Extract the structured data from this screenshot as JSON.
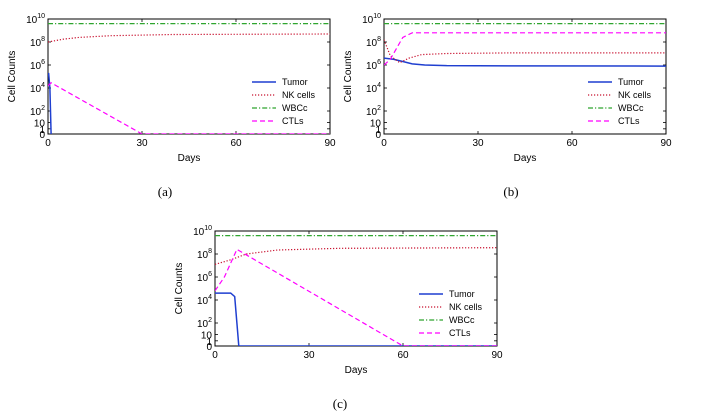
{
  "chart_data": [
    {
      "type": "line",
      "caption": "(a)",
      "xlabel": "Days",
      "ylabel": "Cell Counts",
      "xlim": [
        0,
        90
      ],
      "ylim_log10": [
        0,
        10
      ],
      "xticks": [
        "0",
        "30",
        "60",
        "90"
      ],
      "yticks": [
        {
          "base": "0",
          "exp": ""
        },
        {
          "base": "1",
          "exp": ""
        },
        {
          "base": "10",
          "exp": ""
        },
        {
          "base": "10",
          "exp": "2"
        },
        {
          "base": "10",
          "exp": "4"
        },
        {
          "base": "10",
          "exp": "6"
        },
        {
          "base": "10",
          "exp": "8"
        },
        {
          "base": "10",
          "exp": "10"
        }
      ],
      "legend": [
        "Tumor",
        "NK cells",
        "WBCc",
        "CTLs"
      ],
      "series": [
        {
          "name": "Tumor",
          "color": "#1f3fd0",
          "dash": "solid",
          "points": [
            [
              0,
              5.0
            ],
            [
              0.2,
              5.3
            ],
            [
              0.6,
              4.0
            ],
            [
              1.0,
              0
            ]
          ]
        },
        {
          "name": "NK cells",
          "color": "#c8102e",
          "dash": "dotted",
          "points": [
            [
              0,
              8.0
            ],
            [
              5,
              8.25
            ],
            [
              10,
              8.4
            ],
            [
              20,
              8.55
            ],
            [
              40,
              8.65
            ],
            [
              90,
              8.7
            ]
          ]
        },
        {
          "name": "WBCc",
          "color": "#2fa52f",
          "dash": "dashdot",
          "points": [
            [
              0,
              9.6
            ],
            [
              90,
              9.6
            ]
          ]
        },
        {
          "name": "CTLs",
          "color": "#ff00ff",
          "dash": "dashed",
          "points": [
            [
              0,
              4.2
            ],
            [
              1,
              4.45
            ],
            [
              30,
              0
            ],
            [
              90,
              0
            ]
          ]
        }
      ]
    },
    {
      "type": "line",
      "caption": "(b)",
      "xlabel": "Days",
      "ylabel": "Cell Counts",
      "xlim": [
        0,
        90
      ],
      "ylim_log10": [
        0,
        10
      ],
      "xticks": [
        "0",
        "30",
        "60",
        "90"
      ],
      "yticks": [
        {
          "base": "0",
          "exp": ""
        },
        {
          "base": "1",
          "exp": ""
        },
        {
          "base": "10",
          "exp": ""
        },
        {
          "base": "10",
          "exp": "2"
        },
        {
          "base": "10",
          "exp": "4"
        },
        {
          "base": "10",
          "exp": "6"
        },
        {
          "base": "10",
          "exp": "8"
        },
        {
          "base": "10",
          "exp": "10"
        }
      ],
      "legend": [
        "Tumor",
        "NK cells",
        "WBCc",
        "CTLs"
      ],
      "series": [
        {
          "name": "Tumor",
          "color": "#1f3fd0",
          "dash": "solid",
          "points": [
            [
              0,
              6.6
            ],
            [
              3,
              6.5
            ],
            [
              6,
              6.3
            ],
            [
              9,
              6.1
            ],
            [
              13,
              6.0
            ],
            [
              20,
              5.95
            ],
            [
              40,
              5.92
            ],
            [
              90,
              5.9
            ]
          ]
        },
        {
          "name": "NK cells",
          "color": "#c8102e",
          "dash": "dotted",
          "points": [
            [
              0,
              8.2
            ],
            [
              2,
              6.8
            ],
            [
              5,
              6.2
            ],
            [
              8,
              6.6
            ],
            [
              12,
              6.9
            ],
            [
              20,
              7.0
            ],
            [
              40,
              7.05
            ],
            [
              90,
              7.05
            ]
          ]
        },
        {
          "name": "WBCc",
          "color": "#2fa52f",
          "dash": "dashdot",
          "points": [
            [
              0,
              9.6
            ],
            [
              90,
              9.6
            ]
          ]
        },
        {
          "name": "CTLs",
          "color": "#ff00ff",
          "dash": "dashed",
          "points": [
            [
              0,
              6.0
            ],
            [
              2,
              6.5
            ],
            [
              6,
              8.4
            ],
            [
              9,
              8.8
            ],
            [
              15,
              8.8
            ],
            [
              90,
              8.8
            ]
          ]
        }
      ]
    },
    {
      "type": "line",
      "caption": "(c)",
      "xlabel": "Days",
      "ylabel": "Cell Counts",
      "xlim": [
        0,
        90
      ],
      "ylim_log10": [
        0,
        10
      ],
      "xticks": [
        "0",
        "30",
        "60",
        "90"
      ],
      "yticks": [
        {
          "base": "0",
          "exp": ""
        },
        {
          "base": "1",
          "exp": ""
        },
        {
          "base": "10",
          "exp": ""
        },
        {
          "base": "10",
          "exp": "2"
        },
        {
          "base": "10",
          "exp": "4"
        },
        {
          "base": "10",
          "exp": "6"
        },
        {
          "base": "10",
          "exp": "8"
        },
        {
          "base": "10",
          "exp": "10"
        }
      ],
      "legend": [
        "Tumor",
        "NK cells",
        "WBCc",
        "CTLs"
      ],
      "series": [
        {
          "name": "Tumor",
          "color": "#1f3fd0",
          "dash": "solid",
          "points": [
            [
              0,
              4.6
            ],
            [
              5,
              4.6
            ],
            [
              6.3,
              4.3
            ],
            [
              7,
              2
            ],
            [
              7.6,
              0
            ],
            [
              90,
              0
            ]
          ]
        },
        {
          "name": "NK cells",
          "color": "#c8102e",
          "dash": "dotted",
          "points": [
            [
              0,
              7.1
            ],
            [
              5,
              7.5
            ],
            [
              10,
              8.0
            ],
            [
              20,
              8.35
            ],
            [
              40,
              8.5
            ],
            [
              90,
              8.55
            ]
          ]
        },
        {
          "name": "WBCc",
          "color": "#2fa52f",
          "dash": "dashdot",
          "points": [
            [
              0,
              9.6
            ],
            [
              90,
              9.6
            ]
          ]
        },
        {
          "name": "CTLs",
          "color": "#ff00ff",
          "dash": "dashed",
          "points": [
            [
              0,
              4.8
            ],
            [
              3,
              6.0
            ],
            [
              7,
              8.4
            ],
            [
              60,
              0
            ],
            [
              90,
              0
            ]
          ]
        }
      ]
    }
  ]
}
